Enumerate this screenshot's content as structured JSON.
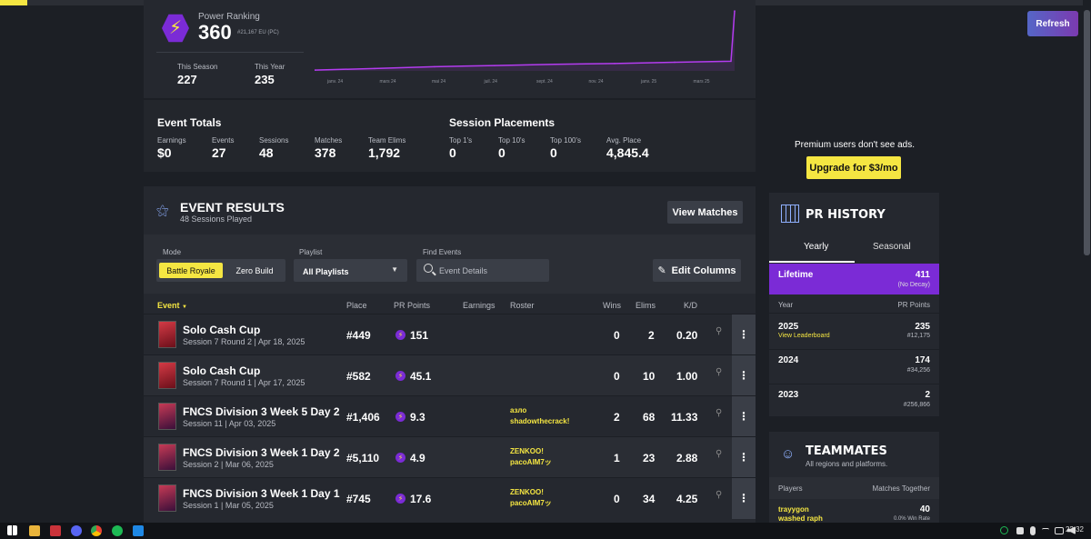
{
  "power_ranking": {
    "label": "Power Ranking",
    "value": "360",
    "rank": "#21,167 EU (PC)",
    "this_season_label": "This Season",
    "this_season_value": "227",
    "this_year_label": "This Year",
    "this_year_value": "235",
    "chart_months": [
      "janv. 24",
      "mars 24",
      "mai 24",
      "juil. 24",
      "sept. 24",
      "nov. 24",
      "janv. 25",
      "mars 25"
    ],
    "line_color": "#b43cf0"
  },
  "chart_data": {
    "type": "area",
    "categories": [
      "janv. 24",
      "mars 24",
      "mai 24",
      "juil. 24",
      "sept. 24",
      "nov. 24",
      "janv. 25",
      "mars 25"
    ],
    "values": [
      5,
      14,
      25,
      32,
      40,
      44,
      52,
      360
    ],
    "title": "",
    "xlabel": "",
    "ylabel": ""
  },
  "event_totals": {
    "title": "Event Totals",
    "items": [
      {
        "label": "Earnings",
        "value": "$0"
      },
      {
        "label": "Events",
        "value": "27"
      },
      {
        "label": "Sessions",
        "value": "48"
      },
      {
        "label": "Matches",
        "value": "378"
      },
      {
        "label": "Team Elims",
        "value": "1,792"
      }
    ]
  },
  "session_placements": {
    "title": "Session Placements",
    "items": [
      {
        "label": "Top 1's",
        "value": "0"
      },
      {
        "label": "Top 10's",
        "value": "0"
      },
      {
        "label": "Top 100's",
        "value": "0"
      },
      {
        "label": "Avg. Place",
        "value": "4,845.4"
      }
    ]
  },
  "event_results": {
    "title": "EVENT RESULTS",
    "subtitle": "48 Sessions Played",
    "view_matches": "View Matches",
    "mode_label": "Mode",
    "mode_on": "Battle Royale",
    "mode_off": "Zero Build",
    "playlist_label": "Playlist",
    "playlist_value": "All Playlists",
    "find_label": "Find Events",
    "find_placeholder": "Event Details",
    "edit_columns": "Edit Columns",
    "columns": {
      "event": "Event",
      "place": "Place",
      "pr": "PR Points",
      "earnings": "Earnings",
      "roster": "Roster",
      "wins": "Wins",
      "elims": "Elims",
      "kd": "K/D"
    },
    "rows": [
      {
        "name": "Solo Cash Cup",
        "sub": "Session 7 Round 2 | Apr 18, 2025",
        "place": "#449",
        "pr": "151",
        "roster1": "",
        "roster2": "",
        "wins": "0",
        "elims": "2",
        "kd": "0.20"
      },
      {
        "name": "Solo Cash Cup",
        "sub": "Session 7 Round 1 | Apr 17, 2025",
        "place": "#582",
        "pr": "45.1",
        "roster1": "",
        "roster2": "",
        "wins": "0",
        "elims": "10",
        "kd": "1.00"
      },
      {
        "name": "FNCS Division 3 Week 5 Day 2",
        "sub": "Session 11 | Apr 03, 2025",
        "place": "#1,406",
        "pr": "9.3",
        "roster1": "азло",
        "roster2": "shadowthecrack!",
        "wins": "2",
        "elims": "68",
        "kd": "11.33"
      },
      {
        "name": "FNCS Division 3 Week 1 Day 2",
        "sub": "Session 2 | Mar 06, 2025",
        "place": "#5,110",
        "pr": "4.9",
        "roster1": "ZENKOO!",
        "roster2": "pacoAIM7ッ",
        "wins": "1",
        "elims": "23",
        "kd": "2.88"
      },
      {
        "name": "FNCS Division 3 Week 1 Day 1",
        "sub": "Session 1 | Mar 05, 2025",
        "place": "#745",
        "pr": "17.6",
        "roster1": "ZENKOO!",
        "roster2": "pacoAIM7ッ",
        "wins": "0",
        "elims": "34",
        "kd": "4.25"
      }
    ]
  },
  "sidebar": {
    "refresh": "Refresh",
    "ads_text": "Premium users don't see ads.",
    "upgrade": "Upgrade for $3/mo"
  },
  "pr_history": {
    "title": "PR HISTORY",
    "tab_yearly": "Yearly",
    "tab_seasonal": "Seasonal",
    "lifetime_label": "Lifetime",
    "lifetime_value": "411",
    "lifetime_note": "(No Decay)",
    "year_header": "Year",
    "points_header": "PR Points",
    "rows": [
      {
        "year": "2025",
        "link": "View Leaderboard",
        "points": "235",
        "rank": "#12,175"
      },
      {
        "year": "2024",
        "link": "",
        "points": "174",
        "rank": "#34,256"
      },
      {
        "year": "2023",
        "link": "",
        "points": "2",
        "rank": "#256,866"
      }
    ]
  },
  "teammates": {
    "title": "TEAMMATES",
    "subtitle": "All regions and platforms.",
    "players_header": "Players",
    "together_header": "Matches Together",
    "row_name1": "trayygon",
    "row_name2": "washed raph",
    "row_value": "40",
    "row_note": "0.0% Win Rate"
  },
  "taskbar": {
    "time": "22:32"
  }
}
